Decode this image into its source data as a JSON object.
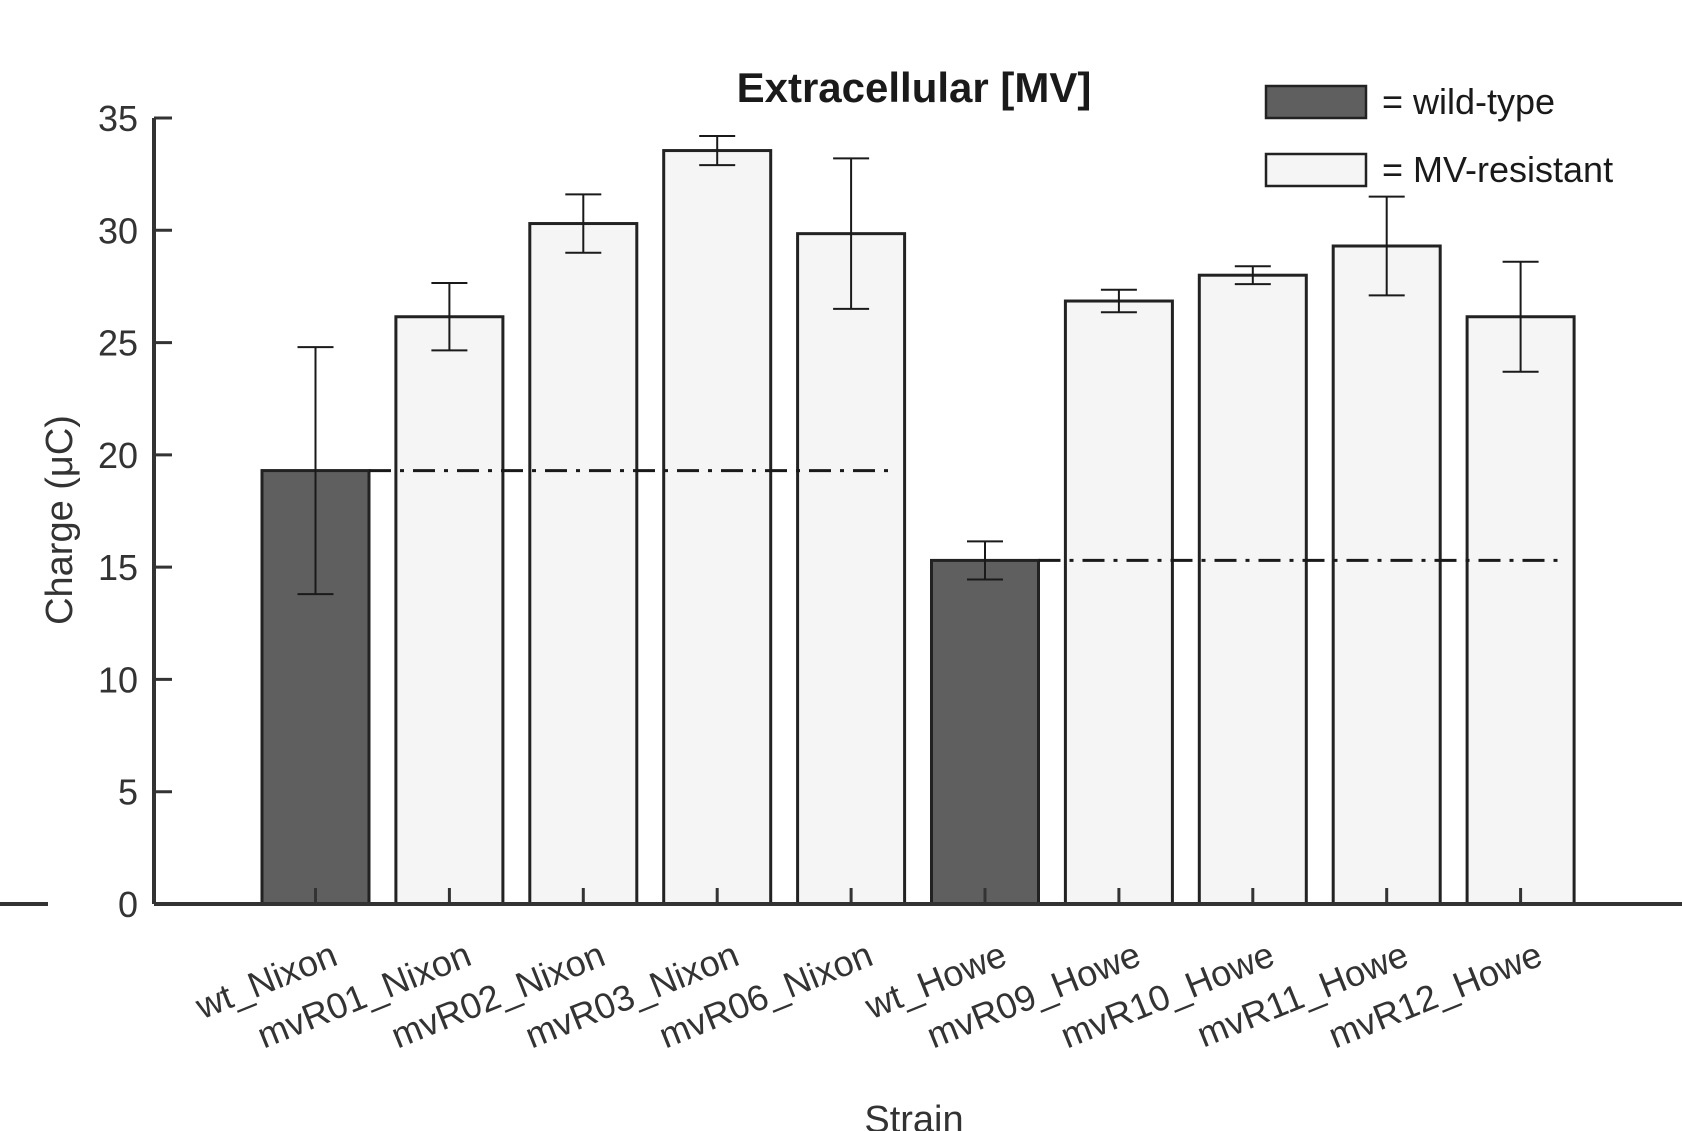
{
  "chart_data": {
    "type": "bar",
    "title": "Extracellular [MV]",
    "xlabel": "Strain",
    "ylabel": "Charge (μC)",
    "ylim": [
      0,
      35
    ],
    "yticks": [
      0,
      5,
      10,
      15,
      20,
      25,
      30,
      35
    ],
    "categories": [
      "wt_Nixon",
      "mvR01_Nixon",
      "mvR02_Nixon",
      "mvR03_Nixon",
      "mvR06_Nixon",
      "wt_Howe",
      "mvR09_Howe",
      "mvR10_Howe",
      "mvR11_Howe",
      "mvR12_Howe"
    ],
    "values": [
      19.3,
      26.15,
      30.3,
      33.55,
      29.85,
      15.3,
      26.85,
      28.0,
      29.3,
      26.15
    ],
    "errors": [
      5.5,
      1.5,
      1.3,
      0.65,
      3.35,
      0.85,
      0.5,
      0.4,
      2.2,
      2.45
    ],
    "groups": [
      "wild-type",
      "MV-resistant",
      "MV-resistant",
      "MV-resistant",
      "MV-resistant",
      "wild-type",
      "MV-resistant",
      "MV-resistant",
      "MV-resistant",
      "MV-resistant"
    ],
    "reference_lines": [
      {
        "value": 19.3,
        "from": "wt_Nixon",
        "to": "mvR06_Nixon",
        "style": "dash-dot"
      },
      {
        "value": 15.3,
        "from": "wt_Howe",
        "to": "mvR12_Howe",
        "style": "dash-dot"
      }
    ],
    "legend": {
      "placement": "top-right",
      "entries": [
        {
          "label": "= wild-type",
          "color": "#5f5f5f"
        },
        {
          "label": "= MV-resistant",
          "color": "#f5f5f5"
        }
      ]
    },
    "colors": {
      "wild-type": "#5f5f5f",
      "MV-resistant": "#f5f5f5",
      "edge": "#222222",
      "axis": "#333333"
    },
    "grid": false
  }
}
